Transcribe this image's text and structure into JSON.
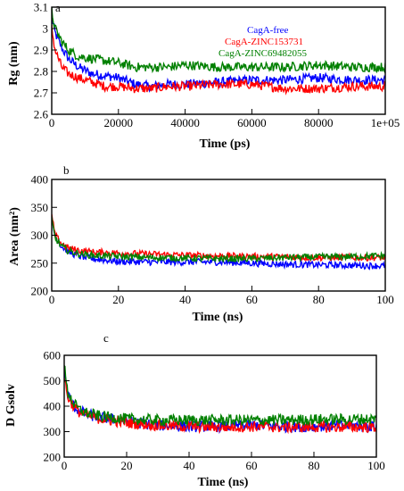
{
  "figure": {
    "panels": [
      {
        "id": "a",
        "label": "a"
      },
      {
        "id": "b",
        "label": "b"
      },
      {
        "id": "c",
        "label": "c"
      }
    ]
  },
  "chart_data": [
    {
      "type": "line",
      "panel": "a",
      "xlabel": "Time (ps)",
      "ylabel": "Rg (nm)",
      "xlim": [
        0,
        100000
      ],
      "ylim": [
        2.6,
        3.1
      ],
      "xticks": [
        0,
        20000,
        40000,
        60000,
        80000,
        100000
      ],
      "xtick_labels": [
        "0",
        "20000",
        "40000",
        "60000",
        "80000",
        "1e+05"
      ],
      "yticks": [
        2.6,
        2.7,
        2.8,
        2.9,
        3.0,
        3.1
      ],
      "ytick_labels": [
        "2.6",
        "2.7",
        "2.8",
        "2.9",
        "3",
        "3.1"
      ],
      "legend": "top-right",
      "series": [
        {
          "name": "CagA-free",
          "color": "#0000ff",
          "noise": 0.022,
          "x": [
            0,
            1000,
            3000,
            5000,
            8000,
            12000,
            16000,
            20000,
            25000,
            30000,
            35000,
            40000,
            50000,
            60000,
            70000,
            80000,
            90000,
            100000
          ],
          "y": [
            3.05,
            2.98,
            2.91,
            2.86,
            2.82,
            2.79,
            2.78,
            2.77,
            2.74,
            2.73,
            2.74,
            2.74,
            2.75,
            2.76,
            2.76,
            2.77,
            2.76,
            2.76
          ]
        },
        {
          "name": "CagA-ZINC153731",
          "color": "#ff0000",
          "noise": 0.022,
          "x": [
            0,
            1000,
            3000,
            5000,
            8000,
            12000,
            16000,
            20000,
            25000,
            30000,
            35000,
            40000,
            50000,
            60000,
            70000,
            80000,
            90000,
            100000
          ],
          "y": [
            3.0,
            2.9,
            2.82,
            2.79,
            2.77,
            2.75,
            2.73,
            2.73,
            2.72,
            2.72,
            2.73,
            2.73,
            2.74,
            2.74,
            2.72,
            2.72,
            2.73,
            2.73
          ]
        },
        {
          "name": "CagA-ZINC69482055",
          "color": "#008000",
          "noise": 0.022,
          "x": [
            0,
            1000,
            3000,
            5000,
            8000,
            12000,
            16000,
            20000,
            25000,
            30000,
            35000,
            40000,
            50000,
            60000,
            70000,
            80000,
            90000,
            100000
          ],
          "y": [
            3.08,
            3.0,
            2.94,
            2.9,
            2.87,
            2.86,
            2.85,
            2.84,
            2.82,
            2.82,
            2.82,
            2.83,
            2.82,
            2.82,
            2.82,
            2.83,
            2.82,
            2.82
          ]
        }
      ]
    },
    {
      "type": "line",
      "panel": "b",
      "xlabel": "Time (ns)",
      "ylabel": "Area (nm²)",
      "xlim": [
        0,
        100
      ],
      "ylim": [
        200,
        400
      ],
      "xticks": [
        0,
        20,
        40,
        60,
        80,
        100
      ],
      "xtick_labels": [
        "0",
        "20",
        "40",
        "60",
        "80",
        "100"
      ],
      "yticks": [
        200,
        250,
        300,
        350,
        400
      ],
      "ytick_labels": [
        "200",
        "250",
        "300",
        "350",
        "400"
      ],
      "series": [
        {
          "name": "CagA-free",
          "color": "#0000ff",
          "noise": 6,
          "x": [
            0,
            1,
            3,
            5,
            8,
            12,
            20,
            30,
            40,
            50,
            60,
            70,
            80,
            90,
            100
          ],
          "y": [
            330,
            298,
            280,
            270,
            263,
            258,
            253,
            252,
            252,
            252,
            250,
            248,
            247,
            246,
            245
          ]
        },
        {
          "name": "CagA-ZINC153731",
          "color": "#ff0000",
          "noise": 6,
          "x": [
            0,
            1,
            3,
            5,
            8,
            12,
            20,
            30,
            40,
            50,
            60,
            70,
            80,
            90,
            100
          ],
          "y": [
            335,
            300,
            285,
            277,
            273,
            270,
            268,
            266,
            264,
            263,
            262,
            261,
            260,
            260,
            260
          ]
        },
        {
          "name": "CagA-ZINC69482055",
          "color": "#008000",
          "noise": 6,
          "x": [
            0,
            1,
            3,
            5,
            8,
            12,
            20,
            30,
            40,
            50,
            60,
            70,
            80,
            90,
            100
          ],
          "y": [
            328,
            295,
            280,
            272,
            267,
            264,
            262,
            260,
            259,
            258,
            258,
            260,
            261,
            262,
            263
          ]
        }
      ]
    },
    {
      "type": "line",
      "panel": "c",
      "xlabel": "Time (ns)",
      "ylabel": "D Gsolv",
      "xlim": [
        0,
        100
      ],
      "ylim": [
        200,
        600
      ],
      "xticks": [
        0,
        20,
        40,
        60,
        80,
        100
      ],
      "xtick_labels": [
        "0",
        "20",
        "40",
        "60",
        "80",
        "100"
      ],
      "yticks": [
        200,
        300,
        400,
        500,
        600
      ],
      "ytick_labels": [
        "200",
        "300",
        "400",
        "500",
        "600"
      ],
      "series": [
        {
          "name": "CagA-free",
          "color": "#0000ff",
          "noise": 22,
          "x": [
            0,
            1,
            3,
            5,
            8,
            12,
            20,
            30,
            40,
            50,
            60,
            70,
            80,
            90,
            100
          ],
          "y": [
            540,
            450,
            400,
            380,
            365,
            355,
            340,
            325,
            320,
            320,
            325,
            320,
            320,
            325,
            320
          ]
        },
        {
          "name": "CagA-ZINC153731",
          "color": "#ff0000",
          "noise": 22,
          "x": [
            0,
            1,
            3,
            5,
            8,
            12,
            20,
            30,
            40,
            50,
            60,
            70,
            80,
            90,
            100
          ],
          "y": [
            520,
            440,
            400,
            375,
            360,
            350,
            335,
            325,
            320,
            318,
            320,
            318,
            318,
            318,
            318
          ]
        },
        {
          "name": "CagA-ZINC69482055",
          "color": "#008000",
          "noise": 22,
          "x": [
            0,
            1,
            3,
            5,
            8,
            12,
            20,
            30,
            40,
            50,
            60,
            70,
            80,
            90,
            100
          ],
          "y": [
            560,
            460,
            410,
            385,
            370,
            360,
            350,
            345,
            345,
            345,
            345,
            345,
            348,
            348,
            350
          ]
        }
      ]
    }
  ]
}
